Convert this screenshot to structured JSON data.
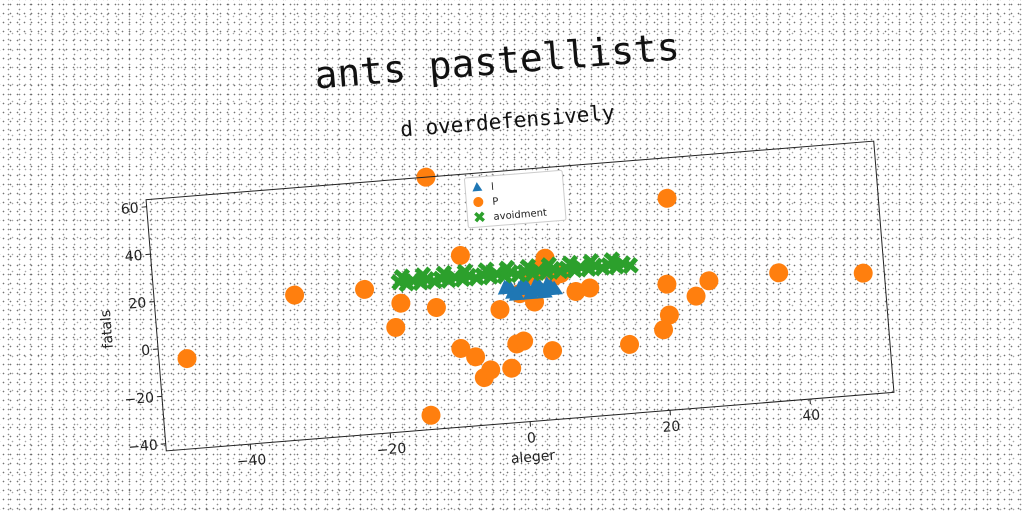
{
  "chart_data": {
    "type": "scatter",
    "title": "ants pastellists",
    "subtitle": "d overdefensively",
    "xlabel": "aleger",
    "ylabel": "fatals",
    "xlim": [
      -52,
      52
    ],
    "ylim": [
      -43,
      63
    ],
    "xticks": [
      -40,
      -20,
      0,
      20,
      40
    ],
    "yticks": [
      -40,
      -20,
      0,
      20,
      40,
      60
    ],
    "xtick_labels": [
      "−40",
      "−20",
      "0",
      "20",
      "40"
    ],
    "ytick_labels": [
      "−40",
      "−20",
      "0",
      "20",
      "40",
      "60"
    ],
    "legend_position": "top-center",
    "series": [
      {
        "name": "l",
        "marker": "triangle",
        "color": "#1f77b4",
        "x": [
          -2,
          -1,
          0,
          1,
          2,
          3,
          4,
          5,
          -1.5,
          0.5,
          2.5,
          4.5,
          1.5,
          3.5,
          -0.5
        ],
        "y": [
          14,
          12,
          13,
          14,
          12,
          13,
          14,
          12,
          15,
          15,
          15,
          13,
          11,
          11,
          11
        ]
      },
      {
        "name": "P",
        "marker": "circle",
        "color": "#ff7f0e",
        "x": [
          -48,
          -32,
          -22,
          -18,
          -17,
          -14,
          -12,
          -12,
          -9,
          -8,
          -7,
          -6,
          -5,
          -3,
          -2,
          -1,
          0,
          0,
          2,
          2,
          3,
          4,
          4,
          5,
          6,
          8,
          10,
          15,
          20,
          21,
          21,
          22,
          25,
          27,
          37,
          49
        ],
        "y": [
          -5,
          18,
          18,
          1,
          11,
          -37,
          8,
          63,
          -10,
          29,
          -14,
          -23,
          -20,
          5,
          -20,
          -10,
          -9,
          11,
          7,
          18,
          21,
          25,
          -14,
          17,
          18,
          10,
          11,
          -14,
          -9,
          -3,
          10,
          46,
          4,
          10,
          11,
          8
        ]
      },
      {
        "name": "avoidment",
        "marker": "x",
        "color": "#2ca02c",
        "x": [
          -17,
          -16,
          -15,
          -14,
          -13,
          -12,
          -11,
          -10,
          -9,
          -8,
          -7,
          -6,
          -5,
          -4,
          -3,
          -2,
          -1,
          0,
          1,
          2,
          3,
          4,
          5,
          6,
          7,
          8,
          9,
          10,
          11,
          12,
          13,
          14,
          15,
          16,
          -16.5,
          -13.5,
          -10.5,
          -7.5,
          -4.5,
          -1.5,
          1.5,
          4.5,
          7.5,
          10.5,
          13.5
        ],
        "y": [
          20,
          19,
          20,
          19,
          20,
          19,
          20,
          19,
          20,
          19,
          20,
          19,
          20,
          19,
          20,
          19,
          20,
          19,
          20,
          19,
          20,
          19,
          20,
          19,
          20,
          19,
          20,
          19,
          20,
          19,
          20,
          19,
          20,
          19,
          22,
          22,
          22,
          22,
          22,
          22,
          22,
          22,
          22,
          22,
          22
        ]
      }
    ]
  }
}
